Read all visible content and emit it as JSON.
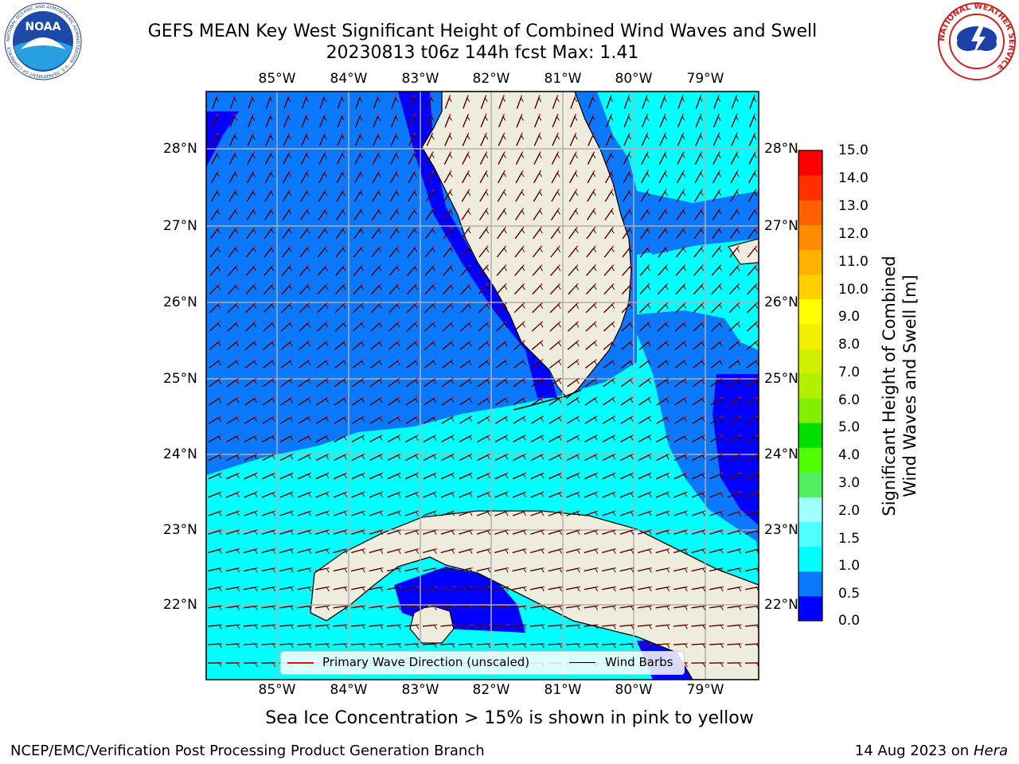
{
  "title": {
    "line1": "GEFS MEAN Key West Significant Height of Combined Wind Waves and Swell",
    "line2": "20230813 t06z 144h fcst   Max: 1.41"
  },
  "logos": {
    "left": {
      "icon": "noaa-logo",
      "text": "NOAA",
      "ring_text": "NATIONAL OCEANIC AND ATMOSPHERIC ADMINISTRATION · U.S. DEPARTMENT OF COMMERCE"
    },
    "right": {
      "icon": "nws-logo",
      "ring_text": "NATIONAL WEATHER SERVICE"
    }
  },
  "map": {
    "lon_labels": [
      "85°W",
      "84°W",
      "83°W",
      "82°W",
      "81°W",
      "80°W",
      "79°W"
    ],
    "lat_labels": [
      "28°N",
      "27°N",
      "26°N",
      "25°N",
      "24°N",
      "23°N",
      "22°N"
    ],
    "colors": {
      "land": "#eeecdc",
      "coast": "#000000",
      "grid": "#b0b0b0",
      "wave_dir": "#ff0000",
      "barb": "#000000"
    },
    "legend": {
      "wave_direction": "Primary Wave Direction (unscaled)",
      "wind_barbs": "Wind Barbs"
    }
  },
  "colorbar": {
    "title_line1": "Significant Height of Combined",
    "title_line2": "Wind Waves and Swell [m]",
    "ticks": [
      "15.0",
      "14.0",
      "13.0",
      "12.0",
      "11.0",
      "10.0",
      "9.0",
      "8.0",
      "7.0",
      "6.0",
      "5.0",
      "4.0",
      "3.0",
      "2.0",
      "1.5",
      "1.0",
      "0.5",
      "0.0"
    ],
    "colors": [
      "#0000ff",
      "#0a78ff",
      "#00ffff",
      "#50ffff",
      "#a0ffff",
      "#50f060",
      "#50ff00",
      "#00e000",
      "#80f000",
      "#b0f000",
      "#d0f000",
      "#f0f000",
      "#ffff00",
      "#ffd000",
      "#ffb000",
      "#ff8c00",
      "#ff6000",
      "#ff3000",
      "#ff0000"
    ]
  },
  "footer": {
    "sea_ice_note": "Sea Ice Concentration > 15% is shown in pink to yellow",
    "credit": "NCEP/EMC/Verification Post Processing Product Generation Branch",
    "date": "14 Aug 2023 on",
    "host": "Hera"
  }
}
